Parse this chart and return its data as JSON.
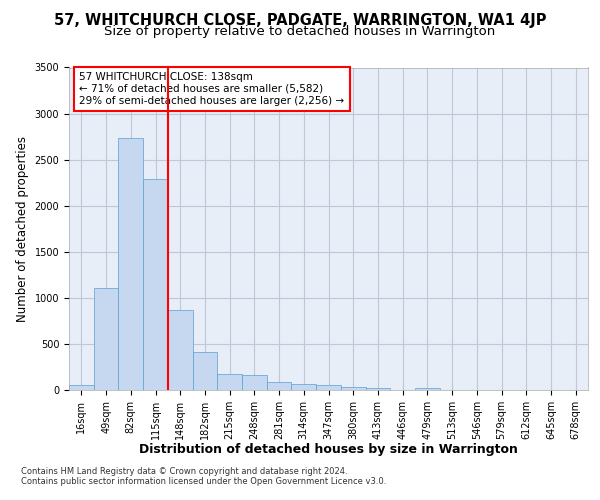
{
  "title": "57, WHITCHURCH CLOSE, PADGATE, WARRINGTON, WA1 4JP",
  "subtitle": "Size of property relative to detached houses in Warrington",
  "xlabel": "Distribution of detached houses by size in Warrington",
  "ylabel": "Number of detached properties",
  "footer_line1": "Contains HM Land Registry data © Crown copyright and database right 2024.",
  "footer_line2": "Contains public sector information licensed under the Open Government Licence v3.0.",
  "annotation_line1": "57 WHITCHURCH CLOSE: 138sqm",
  "annotation_line2": "← 71% of detached houses are smaller (5,582)",
  "annotation_line3": "29% of semi-detached houses are larger (2,256) →",
  "categories": [
    "16sqm",
    "49sqm",
    "82sqm",
    "115sqm",
    "148sqm",
    "182sqm",
    "215sqm",
    "248sqm",
    "281sqm",
    "314sqm",
    "347sqm",
    "380sqm",
    "413sqm",
    "446sqm",
    "479sqm",
    "513sqm",
    "546sqm",
    "579sqm",
    "612sqm",
    "645sqm",
    "678sqm"
  ],
  "bar_values": [
    55,
    1105,
    2735,
    2285,
    870,
    415,
    170,
    165,
    90,
    65,
    50,
    30,
    20,
    5,
    20,
    0,
    0,
    0,
    0,
    0,
    0
  ],
  "bar_color": "#c5d8f0",
  "bar_edge_color": "#5a9fd4",
  "red_line_x": 3.5,
  "grid_color": "#c0c8d8",
  "bg_color": "#e8eef8",
  "ylim_max": 3500,
  "title_fontsize": 10.5,
  "subtitle_fontsize": 9.5,
  "ylabel_fontsize": 8.5,
  "xlabel_fontsize": 9,
  "tick_fontsize": 7,
  "ann_fontsize": 7.5,
  "footer_fontsize": 6
}
